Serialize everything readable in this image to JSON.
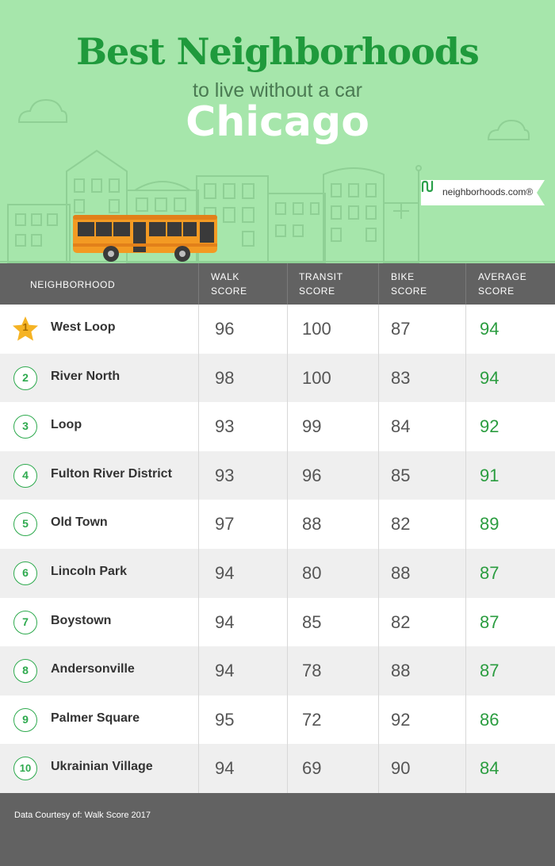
{
  "header": {
    "title": "Best Neighborhoods",
    "subtitle": "to live without a car",
    "city": "Chicago",
    "logo_text": "neighborhoods.com®"
  },
  "colors": {
    "hero_bg": "#a6e6ab",
    "title_green": "#1f9a3c",
    "header_gray": "#626262",
    "accent_green": "#2aa04a",
    "star_gold": "#f5b324",
    "bus_orange": "#f39a23"
  },
  "table": {
    "columns": [
      {
        "line1": "NEIGHBORHOOD",
        "line2": ""
      },
      {
        "line1": "WALK",
        "line2": "SCORE"
      },
      {
        "line1": "TRANSIT",
        "line2": "SCORE"
      },
      {
        "line1": "BIKE",
        "line2": "SCORE"
      },
      {
        "line1": "AVERAGE",
        "line2": "SCORE"
      }
    ],
    "rows": [
      {
        "rank": "1",
        "name": "West Loop",
        "walk": "96",
        "transit": "100",
        "bike": "87",
        "average": "94"
      },
      {
        "rank": "2",
        "name": "River North",
        "walk": "98",
        "transit": "100",
        "bike": "83",
        "average": "94"
      },
      {
        "rank": "3",
        "name": "Loop",
        "walk": "93",
        "transit": "99",
        "bike": "84",
        "average": "92"
      },
      {
        "rank": "4",
        "name": "Fulton River District",
        "walk": "93",
        "transit": "96",
        "bike": "85",
        "average": "91"
      },
      {
        "rank": "5",
        "name": "Old Town",
        "walk": "97",
        "transit": "88",
        "bike": "82",
        "average": "89"
      },
      {
        "rank": "6",
        "name": "Lincoln Park",
        "walk": "94",
        "transit": "80",
        "bike": "88",
        "average": "87"
      },
      {
        "rank": "7",
        "name": "Boystown",
        "walk": "94",
        "transit": "85",
        "bike": "82",
        "average": "87"
      },
      {
        "rank": "8",
        "name": "Andersonville",
        "walk": "94",
        "transit": "78",
        "bike": "88",
        "average": "87"
      },
      {
        "rank": "9",
        "name": "Palmer Square",
        "walk": "95",
        "transit": "72",
        "bike": "92",
        "average": "86"
      },
      {
        "rank": "10",
        "name": "Ukrainian Village",
        "walk": "94",
        "transit": "69",
        "bike": "90",
        "average": "84"
      }
    ]
  },
  "footer": {
    "text": "Data Courtesy of: Walk Score 2017"
  }
}
